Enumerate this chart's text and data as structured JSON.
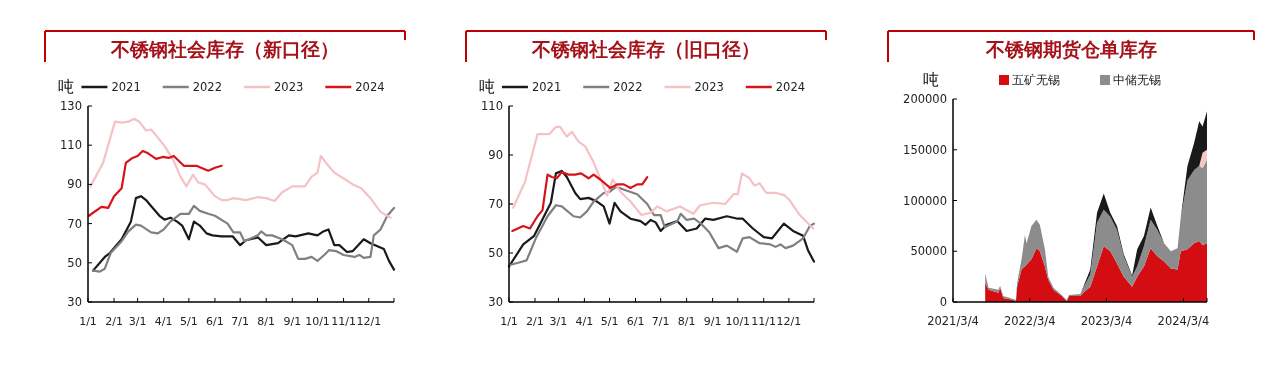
{
  "chart_data": [
    {
      "type": "line",
      "title": "不锈钢社会库存（新口径）",
      "ylabel": "吨",
      "legend": "top",
      "xlim": [
        "--01-01",
        "--12-31"
      ],
      "xticks": [
        {
          "value": "--01-01",
          "label": "1/1"
        },
        {
          "value": "--02-01",
          "label": "2/1"
        },
        {
          "value": "--03-01",
          "label": "3/1"
        },
        {
          "value": "--04-01",
          "label": "4/1"
        },
        {
          "value": "--05-01",
          "label": "5/1"
        },
        {
          "value": "--06-01",
          "label": "6/1"
        },
        {
          "value": "--07-01",
          "label": "7/1"
        },
        {
          "value": "--08-01",
          "label": "8/1"
        },
        {
          "value": "--09-01",
          "label": "9/1"
        },
        {
          "value": "--10-01",
          "label": "10/1"
        },
        {
          "value": "--11-01",
          "label": "11/1"
        },
        {
          "value": "--12-01",
          "label": "12/1"
        }
      ],
      "ylim": [
        30,
        130
      ],
      "yticks": [
        30,
        50,
        70,
        90,
        110,
        130
      ],
      "series": [
        {
          "name": "2021",
          "color": "#1a1a1a",
          "x": [
            "--01-07",
            "--01-21",
            "--01-27",
            "--02-10",
            "--02-21",
            "--02-27",
            "--03-05",
            "--03-11",
            "--03-17",
            "--03-27",
            "--04-02",
            "--04-09",
            "--04-17",
            "--04-23",
            "--05-01",
            "--05-07",
            "--05-14",
            "--05-22",
            "--05-29",
            "--06-09",
            "--06-22",
            "--07-01",
            "--07-08",
            "--07-22",
            "--08-01",
            "--08-15",
            "--08-28",
            "--09-05",
            "--09-20",
            "--10-01",
            "--10-08",
            "--10-14",
            "--10-21",
            "--10-27",
            "--11-05",
            "--11-12",
            "--11-25",
            "--12-03",
            "--12-19",
            "--12-25",
            "--12-31"
          ],
          "values": [
            46,
            53,
            55,
            62,
            71,
            83,
            84,
            82,
            79,
            74,
            72,
            73,
            71,
            69,
            62,
            71,
            69,
            65,
            64,
            63.5,
            63.5,
            59,
            61.5,
            63,
            59,
            60,
            64,
            63.5,
            65,
            64,
            66,
            67,
            59,
            59,
            55.5,
            56,
            62,
            60,
            57,
            51,
            46.5
          ]
        },
        {
          "name": "2022",
          "color": "#808080",
          "x": [
            "--01-07",
            "--01-15",
            "--01-21",
            "--01-28",
            "--02-10",
            "--02-18",
            "--02-27",
            "--03-05",
            "--03-17",
            "--03-25",
            "--04-01",
            "--04-09",
            "--04-21",
            "--05-01",
            "--05-07",
            "--05-14",
            "--05-24",
            "--06-01",
            "--06-16",
            "--06-23",
            "--07-01",
            "--07-06",
            "--07-22",
            "--07-26",
            "--08-01",
            "--08-08",
            "--08-20",
            "--09-01",
            "--09-08",
            "--09-16",
            "--09-24",
            "--10-01",
            "--10-09",
            "--10-15",
            "--10-23",
            "--11-01",
            "--11-14",
            "--11-20",
            "--11-25",
            "--12-03",
            "--12-07",
            "--12-15",
            "--12-23",
            "--12-31"
          ],
          "values": [
            46,
            45.5,
            47,
            55,
            61,
            66,
            69.5,
            69,
            65.5,
            65,
            67,
            71,
            75,
            75,
            79,
            76.5,
            75,
            74,
            70,
            65.5,
            65.5,
            61,
            64,
            66,
            64,
            64,
            62,
            59,
            52,
            52,
            53,
            51,
            54,
            56.5,
            56,
            54,
            53,
            54,
            52.5,
            53,
            64,
            67,
            74,
            78
          ]
        },
        {
          "name": "2023",
          "color": "#f4c2c4",
          "x": [
            "--01-04",
            "--01-19",
            "--02-02",
            "--02-11",
            "--02-18",
            "--02-25",
            "--03-03",
            "--03-11",
            "--03-17",
            "--03-23",
            "--04-03",
            "--04-13",
            "--04-21",
            "--04-28",
            "--05-06",
            "--05-12",
            "--05-20",
            "--06-01",
            "--06-09",
            "--06-16",
            "--06-23",
            "--07-08",
            "--07-22",
            "--08-01",
            "--08-11",
            "--08-20",
            "--09-01",
            "--09-16",
            "--09-24",
            "--10-01",
            "--10-05",
            "--10-13",
            "--10-21",
            "--11-05",
            "--11-12",
            "--11-22",
            "--12-03",
            "--12-15",
            "--12-27"
          ],
          "values": [
            89,
            101,
            122,
            121.5,
            122,
            123.5,
            122,
            117.5,
            118,
            115,
            109,
            102,
            94,
            89,
            95,
            91,
            90,
            84,
            82,
            82,
            83,
            82,
            83.5,
            83,
            81.5,
            86,
            89,
            89,
            94,
            96,
            104.5,
            100,
            96,
            92,
            90,
            88,
            83,
            76,
            73
          ]
        },
        {
          "name": "2024",
          "color": "#d7141a",
          "x": [
            "--01-02",
            "--01-17",
            "--01-25",
            "--02-01",
            "--02-10",
            "--02-15",
            "--02-23",
            "--03-01",
            "--03-07",
            "--03-13",
            "--03-23",
            "--03-31",
            "--04-07",
            "--04-13",
            "--04-25",
            "--05-10",
            "--05-24",
            "--06-01",
            "--06-09"
          ],
          "values": [
            74,
            78.5,
            78,
            84,
            88,
            101,
            103.5,
            104.5,
            107,
            106,
            103,
            104,
            103.5,
            104.5,
            99.5,
            99.5,
            97,
            98.5,
            99.5
          ]
        }
      ]
    },
    {
      "type": "line",
      "title": "不锈钢社会库存（旧口径）",
      "ylabel": "吨",
      "legend": "top",
      "xlim": [
        "--01-01",
        "--12-31"
      ],
      "xticks": [
        {
          "value": "--01-01",
          "label": "1/1"
        },
        {
          "value": "--02-01",
          "label": "2/1"
        },
        {
          "value": "--03-01",
          "label": "3/1"
        },
        {
          "value": "--04-01",
          "label": "4/1"
        },
        {
          "value": "--05-01",
          "label": "5/1"
        },
        {
          "value": "--06-01",
          "label": "6/1"
        },
        {
          "value": "--07-01",
          "label": "7/1"
        },
        {
          "value": "--08-01",
          "label": "8/1"
        },
        {
          "value": "--09-01",
          "label": "9/1"
        },
        {
          "value": "--10-01",
          "label": "10/1"
        },
        {
          "value": "--11-01",
          "label": "11/1"
        },
        {
          "value": "--12-01",
          "label": "12/1"
        }
      ],
      "ylim": [
        30,
        110
      ],
      "yticks": [
        30,
        50,
        70,
        90,
        110
      ],
      "series": [
        {
          "name": "2021",
          "color": "#1a1a1a",
          "x": [
            "--01-01",
            "--01-18",
            "--01-31",
            "--02-20",
            "--02-26",
            "--03-05",
            "--03-11",
            "--03-21",
            "--03-27",
            "--04-06",
            "--04-16",
            "--04-24",
            "--05-01",
            "--05-07",
            "--05-14",
            "--05-26",
            "--06-07",
            "--06-13",
            "--06-19",
            "--06-25",
            "--07-01",
            "--07-08",
            "--07-21",
            "--08-01",
            "--08-13",
            "--08-23",
            "--09-02",
            "--09-18",
            "--10-01",
            "--10-07",
            "--10-19",
            "--11-01",
            "--11-11",
            "--11-25",
            "--12-06",
            "--12-18",
            "--12-24",
            "--12-31"
          ],
          "values": [
            44.5,
            53.5,
            57,
            70.5,
            82.5,
            83.5,
            81,
            74.5,
            72,
            72.5,
            71,
            69,
            62,
            70.5,
            67,
            64,
            63,
            61.5,
            63.5,
            62.5,
            59,
            61.5,
            63,
            59,
            60,
            64,
            63.5,
            65,
            64,
            64,
            60,
            56.5,
            56,
            62,
            59,
            57,
            51,
            46.5
          ]
        },
        {
          "name": "2022",
          "color": "#808080",
          "x": [
            "--01-01",
            "--01-12",
            "--01-22",
            "--02-02",
            "--02-16",
            "--02-26",
            "--03-05",
            "--03-19",
            "--03-27",
            "--04-04",
            "--04-12",
            "--04-24",
            "--05-01",
            "--05-09",
            "--05-21",
            "--06-03",
            "--06-15",
            "--06-23",
            "--07-01",
            "--07-06",
            "--07-21",
            "--07-25",
            "--08-01",
            "--08-10",
            "--08-18",
            "--08-28",
            "--09-08",
            "--09-18",
            "--09-30",
            "--10-07",
            "--10-15",
            "--10-27",
            "--11-09",
            "--11-15",
            "--11-21",
            "--11-27",
            "--12-06",
            "--12-18",
            "--12-26",
            "--12-31"
          ],
          "values": [
            45,
            46,
            47,
            56,
            65,
            69.5,
            69,
            65,
            64.5,
            67,
            71,
            74.5,
            75,
            77,
            75.5,
            74,
            70,
            65.5,
            65.5,
            60.5,
            63,
            66,
            63.5,
            64,
            62,
            58.5,
            52,
            53,
            50.5,
            56,
            56.5,
            54,
            53.5,
            52.5,
            53.5,
            52,
            53,
            56,
            61,
            62
          ]
        },
        {
          "name": "2023",
          "color": "#f4c2c4",
          "x": [
            "--01-06",
            "--01-20",
            "--02-04",
            "--02-18",
            "--02-26",
            "--03-03",
            "--03-11",
            "--03-17",
            "--03-25",
            "--04-02",
            "--04-12",
            "--04-24",
            "--04-28",
            "--05-05",
            "--05-14",
            "--05-26",
            "--06-08",
            "--06-19",
            "--06-27",
            "--07-08",
            "--07-24",
            "--08-09",
            "--08-17",
            "--09-02",
            "--09-16",
            "--09-26",
            "--10-01",
            "--10-06",
            "--10-15",
            "--10-21",
            "--10-27",
            "--11-04",
            "--11-16",
            "--11-26",
            "--12-02",
            "--12-14",
            "--12-30"
          ],
          "values": [
            68.5,
            79,
            98.5,
            98.5,
            101.5,
            101.5,
            97.5,
            99.5,
            95.5,
            93.5,
            87,
            77,
            73.5,
            80,
            75,
            71,
            65.5,
            66.5,
            69,
            67,
            69,
            66,
            69.5,
            70.5,
            70,
            74,
            74,
            82.5,
            80.5,
            77.5,
            78.5,
            74.5,
            74.5,
            73.5,
            71.5,
            65.5,
            60
          ]
        },
        {
          "name": "2024",
          "color": "#d7141a",
          "x": [
            "--01-05",
            "--01-18",
            "--01-26",
            "--02-04",
            "--02-10",
            "--02-16",
            "--02-21",
            "--02-27",
            "--03-05",
            "--03-13",
            "--03-21",
            "--03-28",
            "--04-06",
            "--04-12",
            "--04-20",
            "--05-02",
            "--05-10",
            "--05-18",
            "--05-26",
            "--06-03",
            "--06-09",
            "--06-15"
          ],
          "values": [
            59,
            61,
            60,
            65,
            67.5,
            82,
            81,
            80.5,
            83,
            82,
            82,
            82.5,
            80.5,
            82,
            80,
            76.5,
            78,
            78,
            76.5,
            78,
            78,
            81
          ]
        }
      ]
    },
    {
      "type": "area",
      "stacked": true,
      "title": "不锈钢期货仓单库存",
      "ylabel": "吨",
      "legend": "top",
      "xlim": [
        "2021-03-04",
        "2024-06-24"
      ],
      "xticks": [
        {
          "value": "2021-03-04",
          "label": "2021/3/4"
        },
        {
          "value": "2022-03-04",
          "label": "2022/3/4"
        },
        {
          "value": "2023-03-04",
          "label": "2023/3/4"
        },
        {
          "value": "2024-03-04",
          "label": "2024/3/4"
        }
      ],
      "ylim": [
        0,
        200000
      ],
      "yticks": [
        0,
        50000,
        100000,
        150000,
        200000
      ],
      "x": [
        "2021-08-04",
        "2021-08-20",
        "2021-10-06",
        "2021-10-14",
        "2021-10-29",
        "2021-12-16",
        "2021-12-28",
        "2022-01-03",
        "2022-01-24",
        "2022-02-09",
        "2022-02-17",
        "2022-03-12",
        "2022-04-05",
        "2022-04-21",
        "2022-05-15",
        "2022-05-31",
        "2022-06-25",
        "2022-08-03",
        "2022-08-27",
        "2022-09-07",
        "2022-10-31",
        "2022-11-14",
        "2022-12-17",
        "2023-01-18",
        "2023-02-19",
        "2023-03-22",
        "2023-04-23",
        "2023-05-25",
        "2023-07-04",
        "2023-07-28",
        "2023-08-29",
        "2023-09-30",
        "2023-11-01",
        "2023-12-03",
        "2024-01-04",
        "2024-02-05",
        "2024-02-20",
        "2024-03-23",
        "2024-04-24",
        "2024-05-18",
        "2024-06-03",
        "2024-06-24"
      ],
      "series": [
        {
          "name": "五矿无锡",
          "color": "#d40d12",
          "values": [
            19000,
            12000,
            9000,
            14000,
            4000,
            2000,
            0,
            15000,
            32000,
            35000,
            37000,
            42000,
            53000,
            50000,
            35000,
            22000,
            12000,
            6000,
            1000,
            6000,
            6000,
            9000,
            15000,
            35000,
            55000,
            50000,
            38000,
            25000,
            15000,
            25000,
            35000,
            53000,
            45000,
            40000,
            33000,
            32000,
            50000,
            52000,
            58000,
            60000,
            56000,
            58000
          ]
        },
        {
          "name": "中储无锡",
          "color": "#8c8c8c",
          "values": [
            9000,
            2000,
            3000,
            2000,
            2000,
            1000,
            2000,
            4000,
            10000,
            31000,
            21000,
            33000,
            28000,
            26000,
            17000,
            3000,
            2000,
            1000,
            1000,
            1000,
            2000,
            5000,
            12000,
            43000,
            36000,
            34000,
            33000,
            20000,
            10000,
            10000,
            20000,
            28000,
            26000,
            18000,
            17000,
            21000,
            33000,
            68000,
            72000,
            74000,
            76000,
            82000
          ]
        },
        {
          "color": "#f7c6c7",
          "values": [
            0,
            0,
            0,
            0,
            0,
            0,
            0,
            0,
            0,
            0,
            0,
            0,
            0,
            0,
            0,
            0,
            0,
            0,
            0,
            0,
            0,
            0,
            0,
            0,
            0,
            0,
            0,
            0,
            0,
            0,
            0,
            0,
            0,
            0,
            0,
            0,
            0,
            0,
            0,
            0,
            15000,
            10000
          ]
        },
        {
          "color": "#1a1a1a",
          "values": [
            0,
            0,
            0,
            0,
            0,
            0,
            0,
            0,
            0,
            0,
            0,
            0,
            0,
            0,
            0,
            0,
            0,
            0,
            0,
            0,
            0,
            1000,
            5000,
            10000,
            16000,
            4000,
            4000,
            2000,
            1000,
            17000,
            10000,
            12000,
            4000,
            0,
            0,
            0,
            0,
            14000,
            27000,
            44000,
            26000,
            38000
          ]
        }
      ]
    }
  ]
}
